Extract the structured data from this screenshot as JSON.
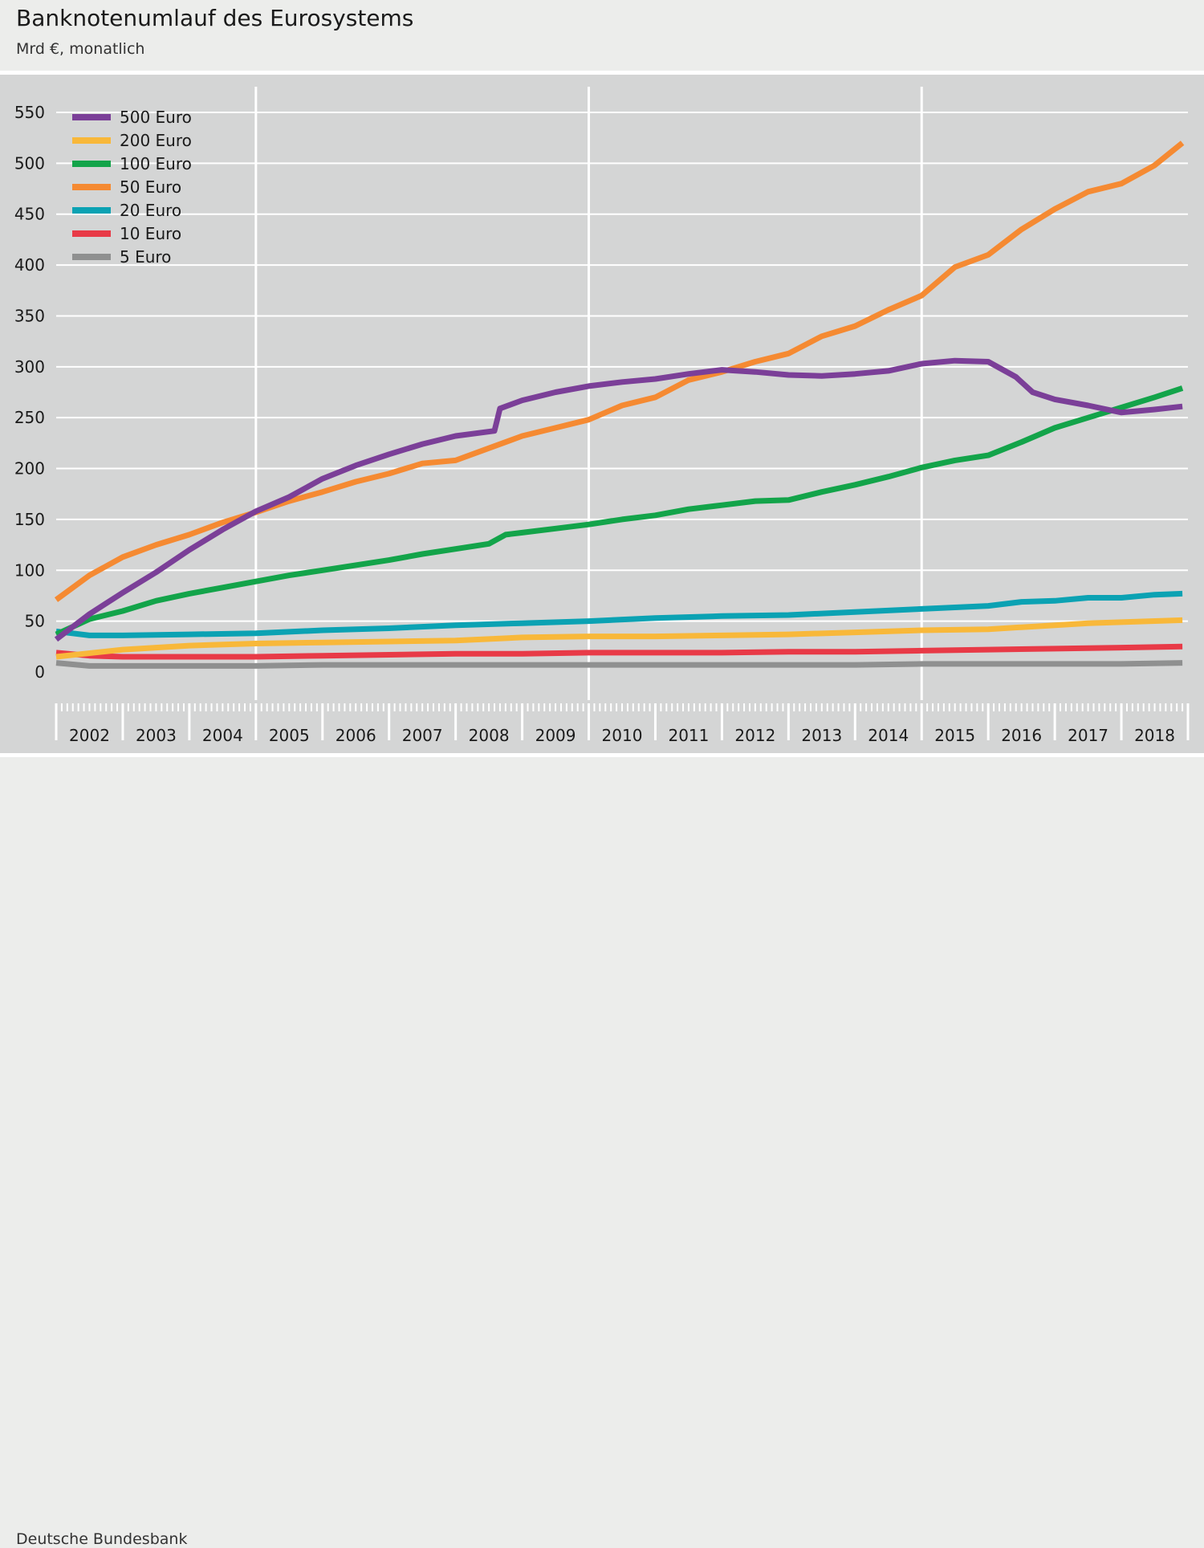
{
  "header": {
    "title": "Banknotenumlauf des Eurosystems",
    "subtitle": "Mrd €, monatlich"
  },
  "footer": {
    "source": "Deutsche Bundesbank"
  },
  "chart_data": {
    "type": "line",
    "title": "Banknotenumlauf des Eurosystems",
    "subtitle": "Mrd €, monatlich",
    "xlabel": "",
    "ylabel": "",
    "ylim": [
      0,
      550
    ],
    "y_ticks": [
      0,
      50,
      100,
      150,
      200,
      250,
      300,
      350,
      400,
      450,
      500,
      550
    ],
    "xlim": [
      "2002-01",
      "2018-12"
    ],
    "x_tick_labels": [
      "2002",
      "2003",
      "2004",
      "2005",
      "2006",
      "2007",
      "2008",
      "2009",
      "2010",
      "2011",
      "2012",
      "2013",
      "2014",
      "2015",
      "2016",
      "2017",
      "2018"
    ],
    "x_major_dividers": [
      "2005-01",
      "2010-01",
      "2015-01"
    ],
    "grid": "horizontal",
    "legend": "top-left",
    "series": [
      {
        "name": "500 Euro",
        "color": "#7b3f98",
        "points": [
          [
            "2002-01",
            32
          ],
          [
            "2002-07",
            57
          ],
          [
            "2003-01",
            78
          ],
          [
            "2003-07",
            98
          ],
          [
            "2004-01",
            120
          ],
          [
            "2004-07",
            140
          ],
          [
            "2005-01",
            158
          ],
          [
            "2005-07",
            172
          ],
          [
            "2006-01",
            190
          ],
          [
            "2006-07",
            203
          ],
          [
            "2007-01",
            214
          ],
          [
            "2007-07",
            224
          ],
          [
            "2008-01",
            232
          ],
          [
            "2008-08",
            237
          ],
          [
            "2008-09",
            259
          ],
          [
            "2009-01",
            267
          ],
          [
            "2009-07",
            275
          ],
          [
            "2010-01",
            281
          ],
          [
            "2010-07",
            285
          ],
          [
            "2011-01",
            288
          ],
          [
            "2011-07",
            293
          ],
          [
            "2012-01",
            297
          ],
          [
            "2012-07",
            295
          ],
          [
            "2013-01",
            292
          ],
          [
            "2013-07",
            291
          ],
          [
            "2014-01",
            293
          ],
          [
            "2014-07",
            296
          ],
          [
            "2015-01",
            303
          ],
          [
            "2015-07",
            306
          ],
          [
            "2016-01",
            305
          ],
          [
            "2016-06",
            290
          ],
          [
            "2016-09",
            275
          ],
          [
            "2017-01",
            268
          ],
          [
            "2017-07",
            262
          ],
          [
            "2018-01",
            255
          ],
          [
            "2018-07",
            258
          ],
          [
            "2018-12",
            261
          ]
        ]
      },
      {
        "name": "200 Euro",
        "color": "#f8b83a",
        "points": [
          [
            "2002-01",
            15
          ],
          [
            "2003-01",
            22
          ],
          [
            "2004-01",
            26
          ],
          [
            "2005-01",
            28
          ],
          [
            "2006-01",
            29
          ],
          [
            "2007-01",
            30
          ],
          [
            "2008-01",
            31
          ],
          [
            "2008-09",
            33
          ],
          [
            "2009-01",
            34
          ],
          [
            "2010-01",
            35
          ],
          [
            "2011-01",
            35
          ],
          [
            "2012-01",
            36
          ],
          [
            "2013-01",
            37
          ],
          [
            "2014-01",
            39
          ],
          [
            "2015-01",
            41
          ],
          [
            "2016-01",
            42
          ],
          [
            "2016-07",
            44
          ],
          [
            "2017-01",
            46
          ],
          [
            "2017-07",
            48
          ],
          [
            "2018-01",
            49
          ],
          [
            "2018-12",
            51
          ]
        ]
      },
      {
        "name": "100 Euro",
        "color": "#13a44a",
        "points": [
          [
            "2002-01",
            37
          ],
          [
            "2002-07",
            52
          ],
          [
            "2003-01",
            60
          ],
          [
            "2003-07",
            70
          ],
          [
            "2004-01",
            77
          ],
          [
            "2004-07",
            83
          ],
          [
            "2005-01",
            89
          ],
          [
            "2005-07",
            95
          ],
          [
            "2006-01",
            100
          ],
          [
            "2006-07",
            105
          ],
          [
            "2007-01",
            110
          ],
          [
            "2007-07",
            116
          ],
          [
            "2008-01",
            121
          ],
          [
            "2008-07",
            126
          ],
          [
            "2008-10",
            135
          ],
          [
            "2009-01",
            137
          ],
          [
            "2009-07",
            141
          ],
          [
            "2010-01",
            145
          ],
          [
            "2010-07",
            150
          ],
          [
            "2011-01",
            154
          ],
          [
            "2011-07",
            160
          ],
          [
            "2012-01",
            164
          ],
          [
            "2012-07",
            168
          ],
          [
            "2013-01",
            169
          ],
          [
            "2013-07",
            177
          ],
          [
            "2014-01",
            184
          ],
          [
            "2014-07",
            192
          ],
          [
            "2015-01",
            201
          ],
          [
            "2015-07",
            208
          ],
          [
            "2016-01",
            213
          ],
          [
            "2016-07",
            226
          ],
          [
            "2017-01",
            240
          ],
          [
            "2017-07",
            250
          ],
          [
            "2018-01",
            260
          ],
          [
            "2018-07",
            270
          ],
          [
            "2018-12",
            279
          ]
        ]
      },
      {
        "name": "50 Euro",
        "color": "#f58a32",
        "points": [
          [
            "2002-01",
            71
          ],
          [
            "2002-07",
            95
          ],
          [
            "2003-01",
            113
          ],
          [
            "2003-07",
            125
          ],
          [
            "2004-01",
            135
          ],
          [
            "2004-07",
            147
          ],
          [
            "2005-01",
            157
          ],
          [
            "2005-07",
            168
          ],
          [
            "2006-01",
            177
          ],
          [
            "2006-07",
            187
          ],
          [
            "2007-01",
            195
          ],
          [
            "2007-07",
            205
          ],
          [
            "2008-01",
            208
          ],
          [
            "2008-07",
            220
          ],
          [
            "2009-01",
            232
          ],
          [
            "2009-07",
            240
          ],
          [
            "2010-01",
            248
          ],
          [
            "2010-07",
            262
          ],
          [
            "2011-01",
            270
          ],
          [
            "2011-07",
            287
          ],
          [
            "2012-01",
            295
          ],
          [
            "2012-07",
            305
          ],
          [
            "2013-01",
            313
          ],
          [
            "2013-07",
            330
          ],
          [
            "2014-01",
            340
          ],
          [
            "2014-07",
            356
          ],
          [
            "2015-01",
            370
          ],
          [
            "2015-07",
            398
          ],
          [
            "2016-01",
            410
          ],
          [
            "2016-07",
            435
          ],
          [
            "2017-01",
            455
          ],
          [
            "2017-07",
            472
          ],
          [
            "2018-01",
            480
          ],
          [
            "2018-07",
            498
          ],
          [
            "2018-12",
            520
          ]
        ]
      },
      {
        "name": "20 Euro",
        "color": "#0ba2b3",
        "points": [
          [
            "2002-01",
            40
          ],
          [
            "2002-07",
            36
          ],
          [
            "2003-01",
            36
          ],
          [
            "2004-01",
            37
          ],
          [
            "2005-01",
            38
          ],
          [
            "2006-01",
            41
          ],
          [
            "2007-01",
            43
          ],
          [
            "2008-01",
            46
          ],
          [
            "2009-01",
            48
          ],
          [
            "2010-01",
            50
          ],
          [
            "2011-01",
            53
          ],
          [
            "2012-01",
            55
          ],
          [
            "2013-01",
            56
          ],
          [
            "2014-01",
            59
          ],
          [
            "2015-01",
            62
          ],
          [
            "2016-01",
            65
          ],
          [
            "2016-07",
            69
          ],
          [
            "2017-01",
            70
          ],
          [
            "2017-07",
            73
          ],
          [
            "2018-01",
            73
          ],
          [
            "2018-07",
            76
          ],
          [
            "2018-12",
            77
          ]
        ]
      },
      {
        "name": "10 Euro",
        "color": "#e83a47",
        "points": [
          [
            "2002-01",
            19
          ],
          [
            "2002-07",
            16
          ],
          [
            "2003-01",
            15
          ],
          [
            "2004-01",
            15
          ],
          [
            "2005-01",
            15
          ],
          [
            "2006-01",
            16
          ],
          [
            "2007-01",
            17
          ],
          [
            "2008-01",
            18
          ],
          [
            "2009-01",
            18
          ],
          [
            "2010-01",
            19
          ],
          [
            "2011-01",
            19
          ],
          [
            "2012-01",
            19
          ],
          [
            "2013-01",
            20
          ],
          [
            "2014-01",
            20
          ],
          [
            "2015-01",
            21
          ],
          [
            "2016-01",
            22
          ],
          [
            "2017-01",
            23
          ],
          [
            "2018-01",
            24
          ],
          [
            "2018-12",
            25
          ]
        ]
      },
      {
        "name": "5 Euro",
        "color": "#8f9090",
        "points": [
          [
            "2002-01",
            9
          ],
          [
            "2002-07",
            6
          ],
          [
            "2003-01",
            6
          ],
          [
            "2004-01",
            6
          ],
          [
            "2005-01",
            6
          ],
          [
            "2006-01",
            7
          ],
          [
            "2007-01",
            7
          ],
          [
            "2008-01",
            7
          ],
          [
            "2009-01",
            7
          ],
          [
            "2010-01",
            7
          ],
          [
            "2011-01",
            7
          ],
          [
            "2012-01",
            7
          ],
          [
            "2013-01",
            7
          ],
          [
            "2014-01",
            7
          ],
          [
            "2015-01",
            8
          ],
          [
            "2016-01",
            8
          ],
          [
            "2017-01",
            8
          ],
          [
            "2018-01",
            8
          ],
          [
            "2018-12",
            9
          ]
        ]
      }
    ]
  }
}
